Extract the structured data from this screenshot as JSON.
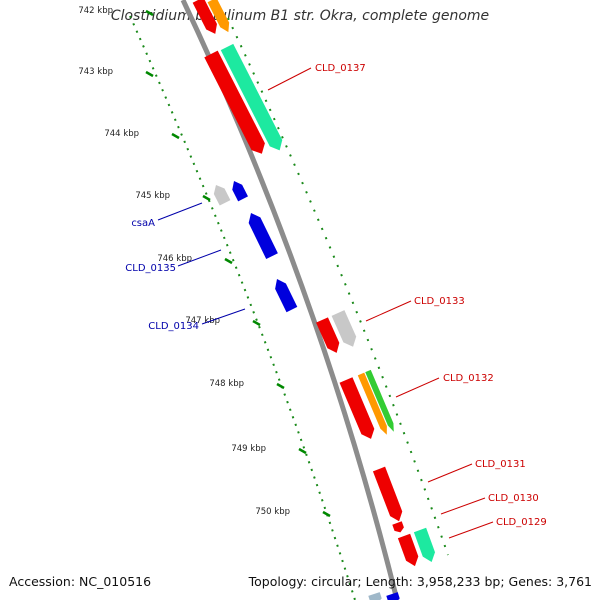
{
  "header": {
    "title": "Clostridium botulinum B1 str. Okra, complete genome"
  },
  "footer": {
    "accession": "Accession: NC_010516",
    "topology": "Topology: circular; Length: 3,958,233 bp; Genes: 3,761"
  },
  "ticks": [
    "742 kbp",
    "743 kbp",
    "744 kbp",
    "745 kbp",
    "746 kbp",
    "747 kbp",
    "748 kbp",
    "749 kbp",
    "750 kbp"
  ],
  "genes": {
    "reverse": [
      "csaA",
      "CLD_0135",
      "CLD_0134"
    ],
    "forward": [
      "CLD_0137",
      "CLD_0133",
      "CLD_0132",
      "CLD_0131",
      "CLD_0130",
      "CLD_0129"
    ]
  },
  "colors": {
    "backbone": "#8c8c8c",
    "forward_label": "#cc0000",
    "reverse_label": "#0000aa",
    "cds_red": "#ee0000",
    "cds_spring_green": "#1de9a0",
    "cds_orange": "#ff9900",
    "cds_green": "#33cc33",
    "cds_gray": "#c8c8c8",
    "cds_blue": "#0000dd",
    "tick_mark": "#008800"
  }
}
